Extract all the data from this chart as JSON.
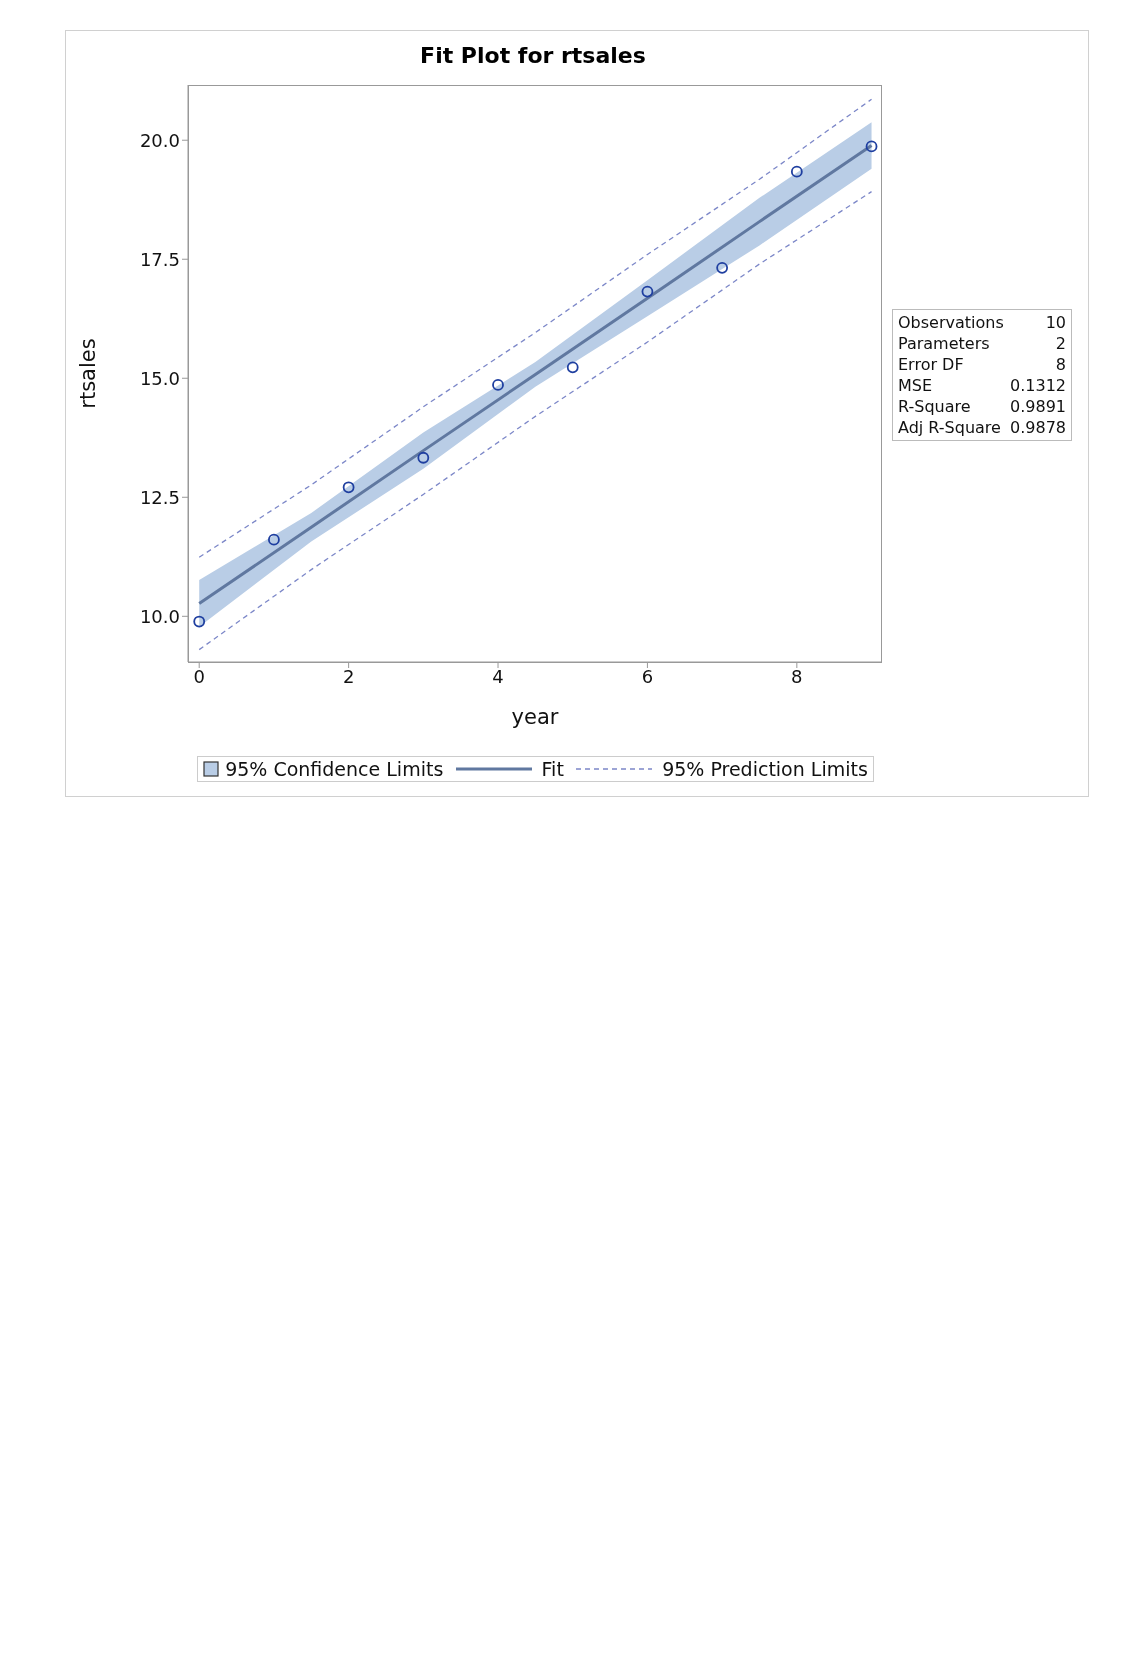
{
  "chart_data": [
    {
      "type": "scatter",
      "title": "Fit Plot for rtsales",
      "xlabel": "year",
      "ylabel": "rtsales",
      "xlim": [
        -0.15,
        9.14
      ],
      "xticks": [
        0,
        2,
        4,
        6,
        8
      ],
      "ylim": [
        9.04,
        21.16
      ],
      "yticks": [
        {
          "value": 10,
          "label": "10.0"
        },
        {
          "value": 12.5,
          "label": "12.5"
        },
        {
          "value": 15,
          "label": "15.0"
        },
        {
          "value": 17.5,
          "label": "17.5"
        },
        {
          "value": 20,
          "label": "20.0"
        }
      ],
      "legend": "bottom",
      "series": [
        {
          "type": "area",
          "name": "95% Confidence Limits",
          "color": "#b9cde6"
        },
        {
          "type": "line",
          "name": "Fit",
          "color": "#6078a0",
          "x": [
            0,
            1.5,
            3,
            4.5,
            6,
            7.5,
            9
          ],
          "values": [
            10.27,
            11.87,
            13.48,
            15.08,
            16.68,
            18.29,
            19.89
          ],
          "lower": [
            9.78,
            11.57,
            13.1,
            14.82,
            16.3,
            17.79,
            19.4
          ],
          "upper": [
            10.76,
            12.17,
            13.86,
            15.34,
            17.06,
            18.79,
            20.38
          ]
        },
        {
          "type": "line",
          "name": "95% Prediction Limits",
          "color": "#7c87c8",
          "line_style": "dashed",
          "x": [
            0,
            1.5,
            3,
            4.5,
            6,
            7.5,
            9
          ],
          "values": [
            11.24,
            12.76,
            14.4,
            15.96,
            17.6,
            19.18,
            20.86
          ]
        },
        {
          "type": "line",
          "color": "#7c87c8",
          "line_style": "dashed",
          "x": [
            0,
            1.5,
            3,
            4.5,
            6,
            7.5,
            9
          ],
          "values": [
            9.3,
            10.98,
            12.56,
            14.2,
            15.76,
            17.4,
            18.92
          ]
        },
        {
          "type": "scatter",
          "color": "#1f3fa0",
          "marker": "circle",
          "x": [
            0,
            1,
            2,
            3,
            4,
            5,
            6,
            7,
            8,
            9
          ],
          "values": [
            9.89,
            11.61,
            12.71,
            13.33,
            14.86,
            15.23,
            16.82,
            17.32,
            19.34,
            19.87
          ]
        }
      ]
    },
    {
      "type": "other",
      "data_labels": true,
      "categories": [
        "Observations",
        "Parameters",
        "Error DF",
        "MSE",
        "R-Square",
        "Adj R-Square"
      ],
      "values": [
        10,
        2,
        8,
        0.1312,
        0.9891,
        0.9878
      ]
    }
  ]
}
